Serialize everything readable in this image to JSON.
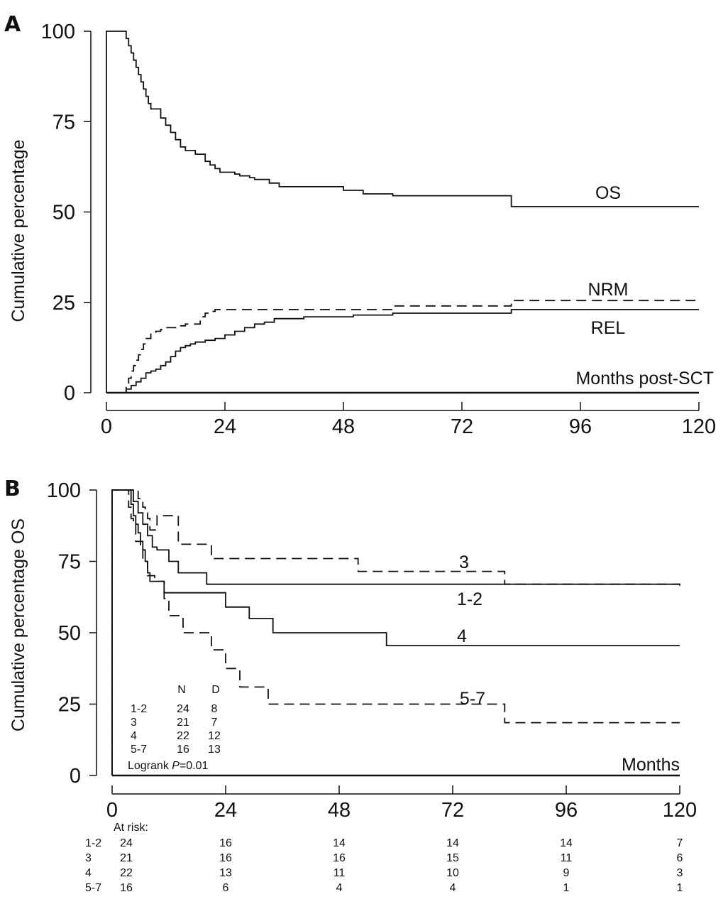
{
  "figure": {
    "colors": {
      "panel_letter": "#1f6b8f",
      "lines": "#111111"
    }
  },
  "chart_data": [
    {
      "panel": "A",
      "type": "line",
      "title": "",
      "xlabel": "Months post-SCT",
      "ylabel": "Cumulative percentage",
      "xlim": [
        0,
        120
      ],
      "ylim": [
        0,
        100
      ],
      "xticks": [
        0,
        24,
        48,
        72,
        96,
        120
      ],
      "yticks": [
        0,
        25,
        50,
        75,
        100
      ],
      "series": [
        {
          "name": "OS",
          "style": "solid",
          "step": true,
          "x": [
            0,
            3.5,
            4,
            4.5,
            5,
            5.5,
            6,
            6.5,
            7,
            7.5,
            8,
            8.5,
            9,
            11,
            12,
            13,
            14,
            15,
            16,
            18,
            20,
            21,
            22,
            23,
            24,
            25,
            26,
            27,
            28,
            29,
            30,
            31,
            33,
            35,
            37,
            40,
            46,
            48,
            52,
            58,
            82,
            120
          ],
          "y": [
            100,
            100,
            98,
            96,
            94,
            92,
            90,
            88,
            86,
            84,
            82,
            80,
            78.5,
            76,
            74,
            72,
            70,
            68,
            67,
            66,
            64,
            63,
            62,
            61,
            61,
            61,
            60.5,
            60,
            60,
            59.5,
            59,
            59,
            58,
            57,
            57,
            57,
            57,
            56,
            55,
            54.5,
            51.5,
            51.5
          ]
        },
        {
          "name": "NRM",
          "style": "dashed",
          "step": true,
          "x": [
            0,
            3.5,
            4,
            4.5,
            5,
            5.5,
            6,
            6.5,
            7,
            7.5,
            8,
            9,
            10,
            11,
            12,
            14,
            16,
            18,
            19,
            20,
            21,
            22,
            30,
            40,
            50,
            58,
            82,
            120
          ],
          "y": [
            0,
            0,
            2,
            4,
            6,
            7.5,
            9,
            10.5,
            12,
            13.5,
            15,
            16.5,
            17,
            17.5,
            18,
            18.5,
            19,
            19,
            21,
            22,
            22.5,
            23,
            23,
            23,
            23,
            24,
            25.5,
            25.5
          ]
        },
        {
          "name": "REL",
          "style": "solid",
          "step": true,
          "x": [
            0,
            3.5,
            4,
            5,
            6,
            7,
            8,
            9,
            10,
            11,
            12,
            13,
            14,
            15,
            16,
            17,
            18,
            20,
            22,
            24,
            26,
            28,
            30,
            32,
            34,
            40,
            50,
            58,
            82,
            120
          ],
          "y": [
            0,
            0,
            1,
            2,
            3,
            4,
            5.5,
            6,
            6.5,
            7.5,
            8.5,
            10,
            11.5,
            12.5,
            13,
            13.5,
            14,
            14.5,
            15,
            16,
            17,
            18,
            19,
            19.5,
            20.5,
            21,
            21.5,
            22,
            23,
            23
          ]
        }
      ],
      "annotations": {
        "os_label": "OS",
        "nrm_label": "NRM",
        "rel_label": "REL"
      }
    },
    {
      "panel": "B",
      "type": "line",
      "title": "",
      "xlabel": "Months",
      "ylabel": "Cumulative percentage OS",
      "xlim": [
        0,
        120
      ],
      "ylim": [
        0,
        100
      ],
      "xticks": [
        0,
        24,
        48,
        72,
        96,
        120
      ],
      "yticks": [
        0,
        25,
        50,
        75,
        100
      ],
      "series": [
        {
          "name": "1-2",
          "style": "solid",
          "step": true,
          "x": [
            0,
            3.5,
            4.5,
            5.5,
            6.5,
            7.5,
            8.5,
            9.5,
            12,
            14,
            20,
            120
          ],
          "y": [
            100,
            100,
            96,
            92,
            88,
            84,
            80,
            79,
            75,
            71,
            67,
            67
          ]
        },
        {
          "name": "3",
          "style": "dashed",
          "step": true,
          "x": [
            0,
            4.5,
            5.5,
            6.5,
            7,
            7.5,
            8,
            9.5,
            14,
            21,
            34,
            52,
            83,
            120
          ],
          "y": [
            100,
            100,
            97,
            94,
            92,
            90,
            86,
            91,
            81,
            76,
            76,
            71.5,
            67,
            66.5
          ]
        },
        {
          "name": "4",
          "style": "solid",
          "step": true,
          "x": [
            0,
            3.5,
            4,
            4.5,
            5,
            5.5,
            6,
            6.5,
            7,
            7.5,
            8,
            11,
            16,
            24,
            29,
            34,
            58,
            120
          ],
          "y": [
            100,
            100,
            95,
            91,
            88,
            85,
            82,
            79,
            75,
            71,
            68,
            64,
            64,
            59,
            55,
            50,
            45.5,
            45.5
          ]
        },
        {
          "name": "5-7",
          "style": "dashed",
          "step": true,
          "x": [
            0,
            3,
            3.5,
            4,
            4.5,
            5,
            6,
            6.5,
            7.5,
            9,
            11,
            12,
            15,
            17,
            21,
            24,
            27,
            33,
            83,
            120
          ],
          "y": [
            100,
            100,
            94,
            90,
            88,
            82,
            80,
            75,
            70,
            68,
            62,
            56,
            50,
            50,
            44,
            37.5,
            31,
            25,
            18.5,
            18.5
          ]
        }
      ],
      "annotations": {
        "label_3": "3",
        "label_12": "1-2",
        "label_4": "4",
        "label_57": "5-7"
      },
      "legend": {
        "headers": [
          "N",
          "D"
        ],
        "rows": [
          {
            "group": "1-2",
            "n": "24",
            "d": "8"
          },
          {
            "group": "3",
            "n": "21",
            "d": "7"
          },
          {
            "group": "4",
            "n": "22",
            "d": "12"
          },
          {
            "group": "5-7",
            "n": "16",
            "d": "13"
          }
        ],
        "logrank_prefix": "Logrank ",
        "logrank_p": "P",
        "logrank_value": "=0.01"
      },
      "at_risk": {
        "title": "At risk:",
        "rows": [
          {
            "group": "1-2",
            "values": [
              "24",
              "16",
              "14",
              "14",
              "14",
              "7"
            ]
          },
          {
            "group": "3",
            "values": [
              "21",
              "16",
              "16",
              "15",
              "11",
              "6"
            ]
          },
          {
            "group": "4",
            "values": [
              "22",
              "13",
              "11",
              "10",
              "9",
              "3"
            ]
          },
          {
            "group": "5-7",
            "values": [
              "16",
              "6",
              "4",
              "4",
              "1",
              "1"
            ]
          }
        ]
      }
    }
  ]
}
